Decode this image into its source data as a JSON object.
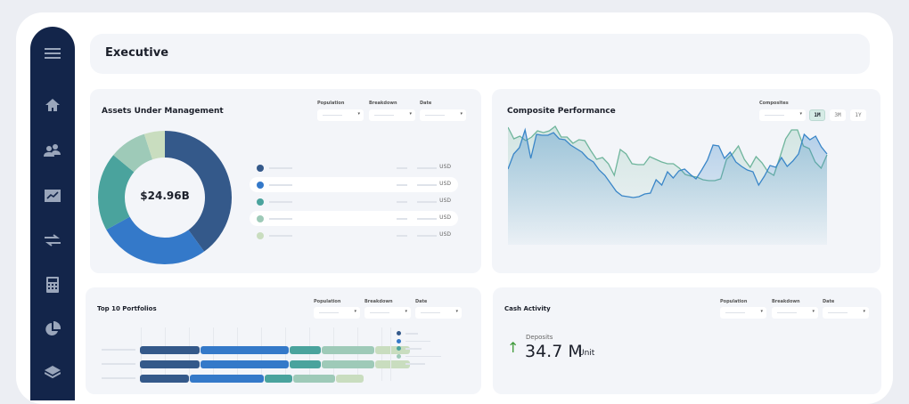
{
  "header": {
    "title": "Executive"
  },
  "sidebar": {
    "items": [
      {
        "icon": "menu-icon"
      },
      {
        "icon": "home-icon"
      },
      {
        "icon": "users-icon"
      },
      {
        "icon": "chart-folder-icon"
      },
      {
        "icon": "transfer-icon"
      },
      {
        "icon": "calculator-icon"
      },
      {
        "icon": "pie-chart-icon"
      },
      {
        "icon": "layers-icon"
      }
    ]
  },
  "colors": {
    "sidebar": "#13254a",
    "navy": "#34598a",
    "blue": "#3479c9",
    "teal": "#4aa39d",
    "light_teal": "#9ecab8",
    "pale_green": "#c9ddbf",
    "line_blue": "#3a86c8",
    "line_green": "#6fb59c",
    "up_arrow": "#3f9a3a"
  },
  "aum": {
    "title": "Assets Under Management",
    "filters": [
      {
        "label": "Population"
      },
      {
        "label": "Breakdown"
      },
      {
        "label": "Date"
      }
    ],
    "center_value": "$24.96B",
    "legend_unit": "USD"
  },
  "composite": {
    "title": "Composite Performance",
    "filter_label": "Composites",
    "ranges": [
      {
        "label": "1M",
        "active": true
      },
      {
        "label": "3M",
        "active": false
      },
      {
        "label": "1Y",
        "active": false
      }
    ]
  },
  "top10": {
    "title": "Top 10 Portfolios",
    "filters": [
      {
        "label": "Population"
      },
      {
        "label": "Breakdown"
      },
      {
        "label": "Date"
      }
    ]
  },
  "cash": {
    "title": "Cash Activity",
    "filters": [
      {
        "label": "Population"
      },
      {
        "label": "Breakdown"
      },
      {
        "label": "Date"
      }
    ],
    "deposits_label": "Deposits",
    "deposits_value": "34.7 M",
    "deposits_unit": "Unit"
  },
  "chart_data": [
    {
      "type": "pie",
      "donut": true,
      "values": [
        0.4,
        0.27,
        0.19,
        0.09,
        0.05
      ],
      "colors": [
        "#34598a",
        "#3479c9",
        "#4aa39d",
        "#9ecab8",
        "#c9ddbf"
      ]
    },
    {
      "type": "area",
      "series": [
        {
          "color": "#3a86c8",
          "values": [
            52,
            69,
            76,
            96,
            64,
            91,
            90,
            90,
            93,
            86,
            85,
            79,
            75,
            71,
            64,
            60,
            51,
            45,
            36,
            27,
            22,
            21,
            20,
            21,
            24,
            25,
            40,
            34,
            49,
            42,
            50,
            52,
            46,
            41,
            51,
            62,
            79,
            78,
            64,
            71,
            60,
            55,
            51,
            49,
            34,
            44,
            56,
            54,
            65,
            55,
            61,
            69,
            91,
            85,
            89,
            77,
            69
          ]
        },
        {
          "color": "#6fb59c",
          "values": [
            99,
            86,
            89,
            84,
            88,
            95,
            93,
            95,
            100,
            88,
            88,
            81,
            85,
            84,
            73,
            63,
            65,
            58,
            45,
            74,
            69,
            58,
            57,
            57,
            66,
            63,
            60,
            58,
            58,
            53,
            46,
            44,
            43,
            40,
            39,
            39,
            41,
            63,
            69,
            78,
            63,
            54,
            66,
            59,
            49,
            45,
            65,
            86,
            96,
            96,
            78,
            75,
            60,
            53,
            68
          ]
        }
      ]
    },
    {
      "type": "bar",
      "stacked": true,
      "orientation": "horizontal",
      "rows": [
        [
          0.17,
          0.25,
          0.09,
          0.15,
          0.1
        ],
        [
          0.17,
          0.25,
          0.09,
          0.15,
          0.1
        ],
        [
          0.14,
          0.21,
          0.08,
          0.12,
          0.08
        ]
      ],
      "colors": [
        "#34598a",
        "#3479c9",
        "#4aa39d",
        "#9ecab8",
        "#c9ddbf"
      ]
    }
  ]
}
